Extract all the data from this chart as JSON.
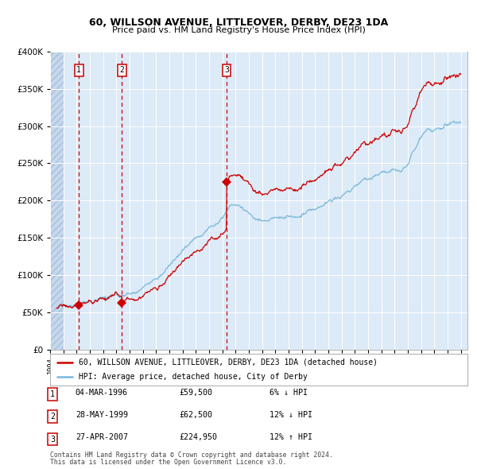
{
  "title": "60, WILLSON AVENUE, LITTLEOVER, DERBY, DE23 1DA",
  "subtitle": "Price paid vs. HM Land Registry's House Price Index (HPI)",
  "transactions": [
    {
      "num": 1,
      "date": "04-MAR-1996",
      "date_val": 1996.17,
      "price": 59500,
      "pct": "6%",
      "dir": "↓"
    },
    {
      "num": 2,
      "date": "28-MAY-1999",
      "date_val": 1999.41,
      "price": 62500,
      "pct": "12%",
      "dir": "↓"
    },
    {
      "num": 3,
      "date": "27-APR-2007",
      "date_val": 2007.32,
      "price": 224950,
      "pct": "12%",
      "dir": "↑"
    }
  ],
  "legend_line1": "60, WILLSON AVENUE, LITTLEOVER, DERBY, DE23 1DA (detached house)",
  "legend_line2": "HPI: Average price, detached house, City of Derby",
  "footer1": "Contains HM Land Registry data © Crown copyright and database right 2024.",
  "footer2": "This data is licensed under the Open Government Licence v3.0.",
  "hpi_color": "#7ab8d9",
  "price_color": "#cc0000",
  "bg_color": "#ddeaf7",
  "grid_color": "#ffffff",
  "vline_color": "#cc0000",
  "ylim": [
    0,
    400000
  ],
  "xlim_start": 1994.0,
  "xlim_end": 2025.5,
  "hpi_key_years": [
    1994.5,
    1995.0,
    1995.5,
    1996.0,
    1996.5,
    1997.0,
    1997.5,
    1998.0,
    1998.5,
    1999.0,
    1999.5,
    2000.0,
    2000.5,
    2001.0,
    2001.5,
    2002.0,
    2002.5,
    2003.0,
    2003.5,
    2004.0,
    2004.5,
    2005.0,
    2005.5,
    2006.0,
    2006.5,
    2007.0,
    2007.5,
    2008.0,
    2008.5,
    2009.0,
    2009.5,
    2010.0,
    2010.5,
    2011.0,
    2011.5,
    2012.0,
    2012.5,
    2013.0,
    2013.5,
    2014.0,
    2014.5,
    2015.0,
    2015.5,
    2016.0,
    2016.5,
    2017.0,
    2017.5,
    2018.0,
    2018.5,
    2019.0,
    2019.5,
    2020.0,
    2020.5,
    2021.0,
    2021.5,
    2022.0,
    2022.5,
    2023.0,
    2023.5,
    2024.0,
    2024.5,
    2025.0
  ],
  "hpi_key_vals": [
    56000,
    57500,
    59000,
    60500,
    62500,
    64500,
    66000,
    67500,
    68500,
    69500,
    71000,
    74000,
    78000,
    82000,
    88000,
    95000,
    103000,
    112000,
    122000,
    132000,
    141000,
    149000,
    156000,
    163000,
    172000,
    181000,
    192000,
    196000,
    190000,
    183000,
    177000,
    175000,
    174000,
    175000,
    176000,
    177000,
    178000,
    180000,
    183000,
    187000,
    192000,
    197000,
    202000,
    207000,
    212000,
    218000,
    223000,
    228000,
    232000,
    236000,
    239000,
    240000,
    237000,
    248000,
    265000,
    285000,
    298000,
    296000,
    295000,
    300000,
    305000,
    308000
  ]
}
